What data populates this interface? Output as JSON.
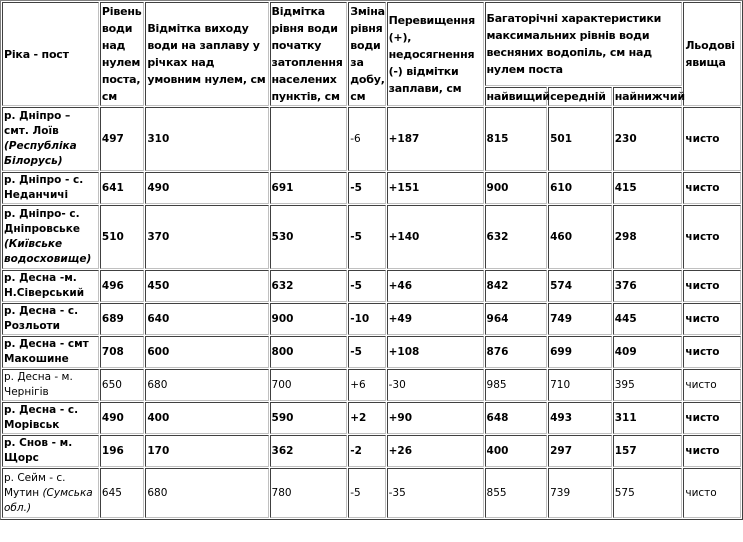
{
  "headers": {
    "river_post": "Ріка - пост",
    "level": "Рівень води над нулем поста, см",
    "floodplain_exit": "Відмітка виходу води на заплаву у річках над умовним нулем, см",
    "flooding_start": "Відмітка рівня води початку затоплення населених пунктів, см",
    "daily_change": "Зміна рівня води за добу, см",
    "excess": "Перевищення (+), недосягнення (-) відмітки заплави, см",
    "multiyear": "Багаторічні характеристики максимальних рівнів води весняних водопіль, см  над нулем поста",
    "highest": "найвищий",
    "average": "середній",
    "lowest": "найнижчий",
    "ice": "Льодові явища"
  },
  "rows": [
    {
      "name": "р. Дніпро – смт. Лоїв",
      "note": "(Республіка Білорусь)",
      "bold": true,
      "normal_cells": [
        3
      ],
      "cells": [
        "497",
        "310",
        "",
        "-6",
        "+187",
        "815",
        "501",
        "230",
        "чисто"
      ]
    },
    {
      "name": "р. Дніпро - с. Неданчичі",
      "note": "",
      "bold": true,
      "normal_cells": [],
      "cells": [
        "641",
        "490",
        "691",
        "-5",
        "+151",
        "900",
        "610",
        "415",
        "чисто"
      ]
    },
    {
      "name": "р. Дніпро- с. Дніпровське",
      "note": "(Київське водосховище)",
      "bold": true,
      "normal_cells": [],
      "cells": [
        "510",
        "370",
        "530",
        "-5",
        "+140",
        "632",
        "460",
        "298",
        "чисто"
      ]
    },
    {
      "name": "р. Десна -м. Н.Сіверський",
      "note": "",
      "bold": true,
      "normal_cells": [],
      "cells": [
        "496",
        "450",
        "632",
        "-5",
        "+46",
        "842",
        "574",
        "376",
        "чисто"
      ]
    },
    {
      "name": "р. Десна - с. Розльоти",
      "note": "",
      "bold": true,
      "normal_cells": [],
      "cells": [
        "689",
        "640",
        "900",
        "-10",
        "+49",
        "964",
        "749",
        "445",
        "чисто"
      ]
    },
    {
      "name": "р. Десна - смт Макошине",
      "note": "",
      "bold": true,
      "normal_cells": [],
      "cells": [
        "708",
        "600",
        "800",
        "-5",
        "+108",
        "876",
        "699",
        "409",
        "чисто"
      ]
    },
    {
      "name": "р. Десна - м. Чернігів",
      "note": "",
      "bold": false,
      "normal_cells": [],
      "cells": [
        "650",
        "680",
        "700",
        "+6",
        "-30",
        "985",
        "710",
        "395",
        "чисто"
      ]
    },
    {
      "name": "р. Десна - с. Морівськ",
      "note": "",
      "bold": true,
      "normal_cells": [],
      "cells": [
        "490",
        "400",
        "590",
        "+2",
        "+90",
        "648",
        "493",
        "311",
        "чисто"
      ]
    },
    {
      "name": "р. Снов - м. Щорс",
      "note": "",
      "bold": true,
      "normal_cells": [],
      "cells": [
        "196",
        "170",
        "362",
        "-2",
        "+26",
        "400",
        "297",
        "157",
        "чисто"
      ]
    },
    {
      "name": "р. Сейм - с. Мутин",
      "note": "(Сумська обл.)",
      "bold": false,
      "normal_cells": [],
      "cells": [
        "645",
        "680",
        "780",
        "-5",
        "-35",
        "855",
        "739",
        "575",
        "чисто"
      ]
    }
  ]
}
